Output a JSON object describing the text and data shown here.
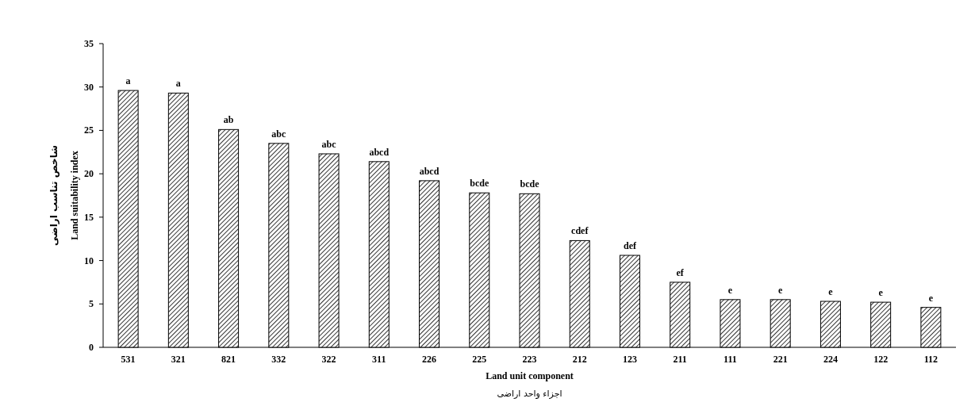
{
  "chart_data": {
    "type": "bar",
    "xlabel": "Land unit component",
    "ylabel": "Land suitability index",
    "annotations": [
      "شاخص تناسب اراضی",
      "اجزاء واحد اراضی"
    ],
    "categories": [
      "531",
      "321",
      "821",
      "332",
      "322",
      "311",
      "226",
      "225",
      "223",
      "212",
      "123",
      "211",
      "111",
      "221",
      "224",
      "122",
      "112"
    ],
    "values": [
      29.6,
      29.3,
      25.1,
      23.5,
      22.3,
      21.4,
      19.2,
      17.8,
      17.7,
      12.3,
      10.6,
      7.5,
      5.5,
      5.5,
      5.3,
      5.2,
      4.6
    ],
    "value_labels": [
      "a",
      "a",
      "ab",
      "abc",
      "abc",
      "abcd",
      "abcd",
      "bcde",
      "bcde",
      "cdef",
      "def",
      "ef",
      "e",
      "e",
      "e",
      "e",
      "e"
    ],
    "color": "#000000",
    "ylim": [
      0,
      35
    ],
    "yticks": [
      0,
      5,
      10,
      15,
      20,
      25,
      30,
      35
    ]
  }
}
